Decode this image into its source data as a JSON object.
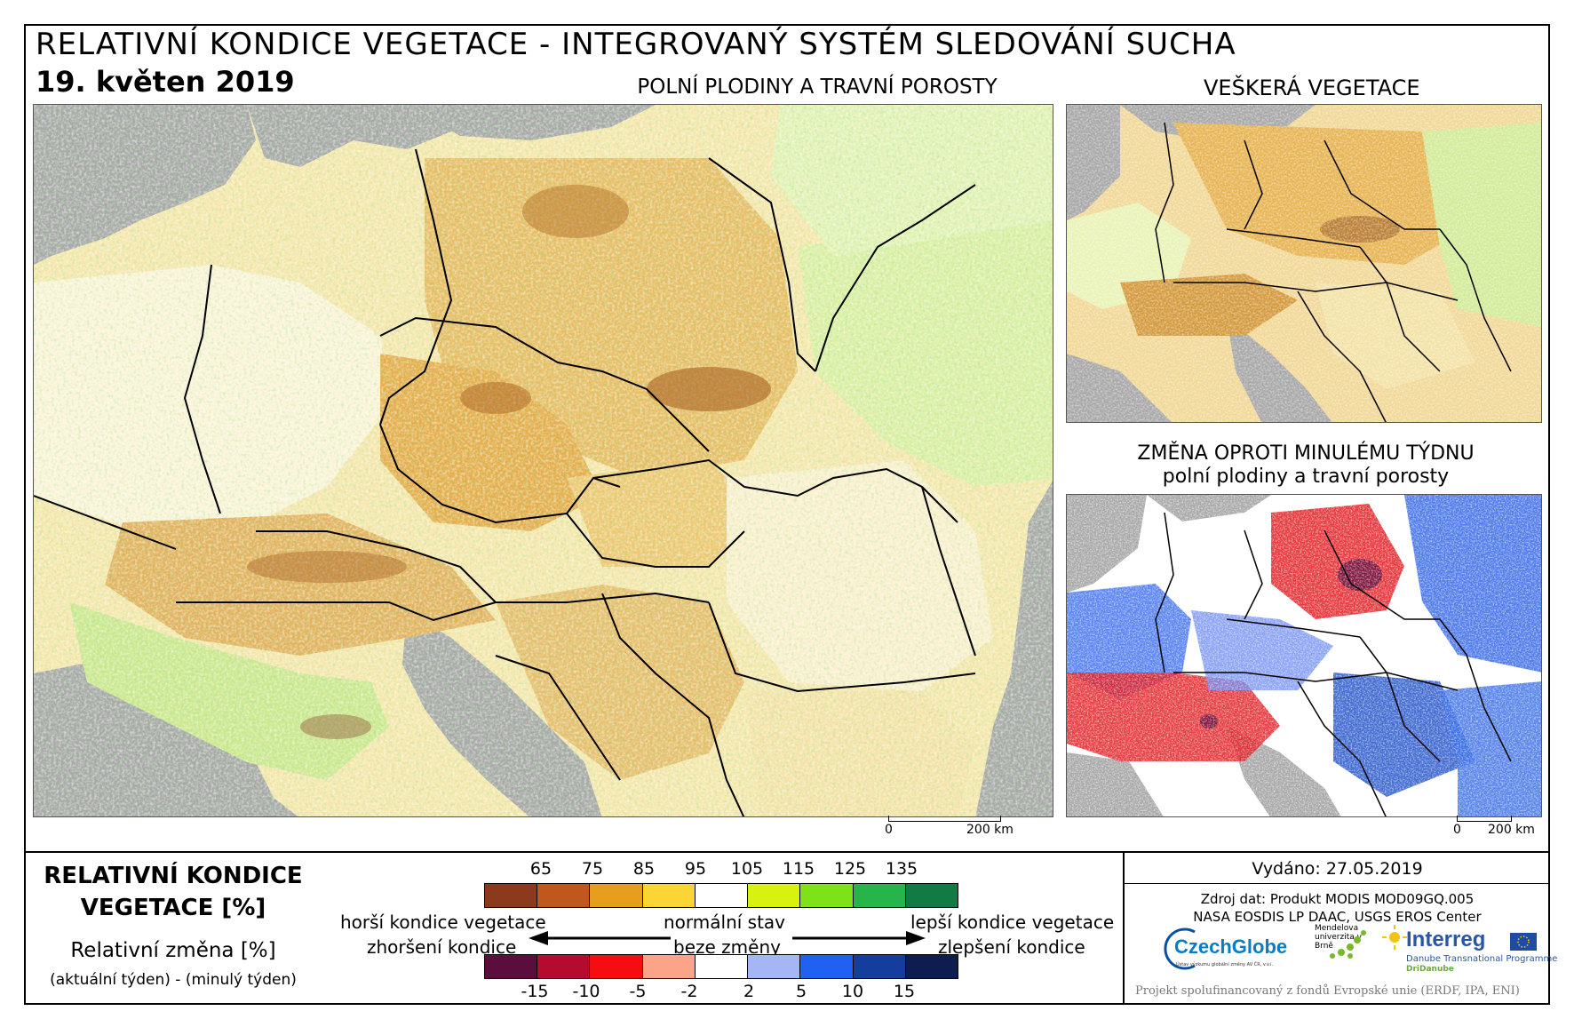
{
  "header": {
    "title": "RELATIVNÍ KONDICE VEGETACE - INTEGROVANÝ SYSTÉM SLEDOVÁNÍ SUCHA",
    "date": "19. květen 2019"
  },
  "maps": {
    "main": {
      "title": "POLNÍ PLODINY A TRAVNÍ POROSTY",
      "scale_zero": "0",
      "scale_label": "200 km"
    },
    "all_vegetation": {
      "title": "VEŠKERÁ VEGETACE"
    },
    "change": {
      "title_line1": "ZMĚNA OPROTI MINULÉMU TÝDNU",
      "title_line2": "polní plodiny a travní porosty",
      "scale_zero": "0",
      "scale_label": "200 km"
    }
  },
  "legend": {
    "title_line1": "RELATIVNÍ KONDICE",
    "title_line2": "VEGETACE [%]",
    "change_title": "Relativní změna [%]",
    "change_sub": "(aktuální týden) - (minulý týden)",
    "condition_ticks": [
      "65",
      "75",
      "85",
      "95",
      "105",
      "115",
      "125",
      "135"
    ],
    "condition_colors": [
      "#8b3a1e",
      "#c0571d",
      "#e59f1d",
      "#fbd533",
      "#ffffff",
      "#d8f20f",
      "#7fe219",
      "#25b54b",
      "#117a45"
    ],
    "change_ticks": [
      "-15",
      "-10",
      "-5",
      "-2",
      "2",
      "5",
      "10",
      "15"
    ],
    "change_colors": [
      "#5b0d3e",
      "#b50b2e",
      "#f50d10",
      "#fba48a",
      "#ffffff",
      "#a4b7f4",
      "#1f62f1",
      "#153d9e",
      "#0e1d4f"
    ],
    "worse": "horší kondice vegetace",
    "normal": "normální stav",
    "better": "lepší kondice vegetace",
    "worsening": "zhoršení kondice",
    "no_change": "beze změny",
    "improving": "zlepšení kondice"
  },
  "info": {
    "issued": "Vydáno: 27.05.2019",
    "source_line1": "Zdroj dat: Produkt MODIS MOD09GQ.005",
    "source_line2": "NASA EOSDIS LP DAAC, USGS EROS Center",
    "logo_czechglobe": "CzechGlobe",
    "logo_czechglobe_sub": "Ústav výzkumu globální změny AV ČR, v.v.i.",
    "logo_mendel": "Mendelova univerzita v Brně",
    "logo_interreg": "Interreg",
    "logo_interreg_sub": "Danube Transnational Programme",
    "logo_interreg_sub2": "DriDanube",
    "footer": "Projekt spolufinancovaný z fondů Evropské unie (ERDF, IPA, ENI)"
  },
  "colors": {
    "sea": "#a8a8a8",
    "border_line": "#000000"
  }
}
